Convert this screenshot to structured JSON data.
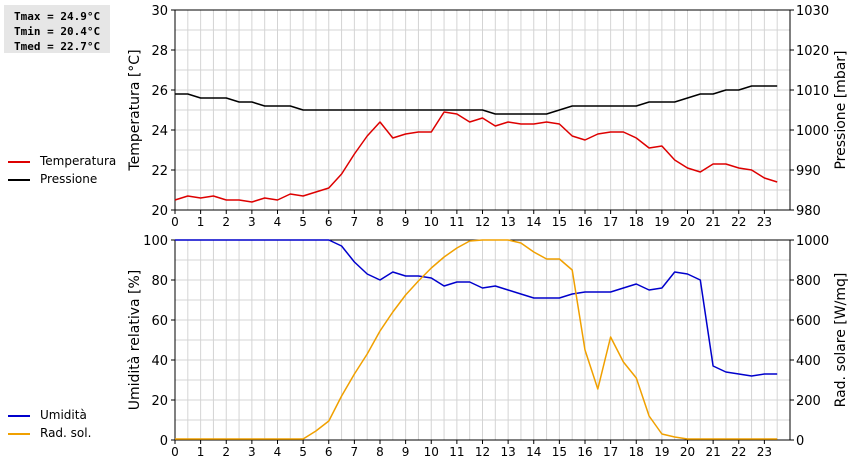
{
  "stats": {
    "tmax": "Tmax = 24.9°C",
    "tmin": "Tmin = 20.4°C",
    "tmed": "Tmed = 22.7°C"
  },
  "colors": {
    "temperature": "#dd0000",
    "pressure": "#000000",
    "humidity": "#0000cc",
    "radiation": "#f0a000",
    "grid": "#d4d4d4"
  },
  "legend_top": [
    {
      "label": "Temperatura",
      "color": "#dd0000"
    },
    {
      "label": "Pressione",
      "color": "#000000"
    }
  ],
  "legend_bottom": [
    {
      "label": "Umidità",
      "color": "#0000cc"
    },
    {
      "label": "Rad. sol.",
      "color": "#f0a000"
    }
  ],
  "chart_data": [
    {
      "type": "line",
      "xlabel": "",
      "xlim": [
        0,
        24
      ],
      "xticks": [
        "0",
        "1",
        "2",
        "3",
        "4",
        "5",
        "6",
        "7",
        "8",
        "9",
        "10",
        "11",
        "12",
        "13",
        "14",
        "15",
        "16",
        "17",
        "18",
        "19",
        "20",
        "21",
        "22",
        "23"
      ],
      "grid": true,
      "left_axis": {
        "label": "Temperatura [°C]",
        "lim": [
          20,
          30
        ],
        "ticks": [
          "20",
          "22",
          "24",
          "26",
          "28",
          "30"
        ]
      },
      "right_axis": {
        "label": "Pressione [mbar]",
        "lim": [
          980,
          1030
        ],
        "ticks": [
          "980",
          "990",
          "1000",
          "1010",
          "1020",
          "1030"
        ]
      },
      "series": [
        {
          "name": "Temperatura",
          "axis": "left",
          "x": [
            0,
            0.5,
            1,
            1.5,
            2,
            2.5,
            3,
            3.5,
            4,
            4.5,
            5,
            5.5,
            6,
            6.5,
            7,
            7.5,
            8,
            8.5,
            9,
            9.5,
            10,
            10.5,
            11,
            11.5,
            12,
            12.5,
            13,
            13.5,
            14,
            14.5,
            15,
            15.5,
            16,
            16.5,
            17,
            17.5,
            18,
            18.5,
            19,
            19.5,
            20,
            20.5,
            21,
            21.5,
            22,
            22.5,
            23,
            23.5
          ],
          "y": [
            20.5,
            20.7,
            20.6,
            20.7,
            20.5,
            20.5,
            20.4,
            20.6,
            20.5,
            20.8,
            20.7,
            20.9,
            21.1,
            21.8,
            22.8,
            23.7,
            24.4,
            23.6,
            23.8,
            23.9,
            23.9,
            24.9,
            24.8,
            24.4,
            24.6,
            24.2,
            24.4,
            24.3,
            24.3,
            24.4,
            24.3,
            23.7,
            23.5,
            23.8,
            23.9,
            23.9,
            23.6,
            23.1,
            23.2,
            22.5,
            22.1,
            21.9,
            22.3,
            22.3,
            22.1,
            22.0,
            21.6,
            21.4
          ]
        },
        {
          "name": "Pressione",
          "axis": "right",
          "x": [
            0,
            0.5,
            1,
            1.5,
            2,
            2.5,
            3,
            3.5,
            4,
            4.5,
            5,
            5.5,
            6,
            6.5,
            7,
            7.5,
            8,
            8.5,
            9,
            9.5,
            10,
            10.5,
            11,
            11.5,
            12,
            12.5,
            13,
            13.5,
            14,
            14.5,
            15,
            15.5,
            16,
            16.5,
            17,
            17.5,
            18,
            18.5,
            19,
            19.5,
            20,
            20.5,
            21,
            21.5,
            22,
            22.5,
            23,
            23.5
          ],
          "y": [
            1009,
            1009,
            1008,
            1008,
            1008,
            1007,
            1007,
            1006,
            1006,
            1006,
            1005,
            1005,
            1005,
            1005,
            1005,
            1005,
            1005,
            1005,
            1005,
            1005,
            1005,
            1005,
            1005,
            1005,
            1005,
            1004,
            1004,
            1004,
            1004,
            1004,
            1005,
            1006,
            1006,
            1006,
            1006,
            1006,
            1006,
            1007,
            1007,
            1007,
            1008,
            1009,
            1009,
            1010,
            1010,
            1011,
            1011,
            1011
          ]
        }
      ]
    },
    {
      "type": "line",
      "xlabel": "",
      "xlim": [
        0,
        24
      ],
      "xticks": [
        "0",
        "1",
        "2",
        "3",
        "4",
        "5",
        "6",
        "7",
        "8",
        "9",
        "10",
        "11",
        "12",
        "13",
        "14",
        "15",
        "16",
        "17",
        "18",
        "19",
        "20",
        "21",
        "22",
        "23"
      ],
      "grid": true,
      "left_axis": {
        "label": "Umidità relativa [%]",
        "lim": [
          0,
          100
        ],
        "ticks": [
          "0",
          "20",
          "40",
          "60",
          "80",
          "100"
        ]
      },
      "right_axis": {
        "label": "Rad. solare [W/mq]",
        "lim": [
          0,
          1000
        ],
        "ticks": [
          "0",
          "200",
          "400",
          "600",
          "800",
          "1000"
        ]
      },
      "series": [
        {
          "name": "Umidità",
          "axis": "left",
          "x": [
            0,
            0.5,
            1,
            1.5,
            2,
            2.5,
            3,
            3.5,
            4,
            4.5,
            5,
            5.5,
            6,
            6.5,
            7,
            7.5,
            8,
            8.5,
            9,
            9.5,
            10,
            10.5,
            11,
            11.5,
            12,
            12.5,
            13,
            13.5,
            14,
            14.5,
            15,
            15.5,
            16,
            16.5,
            17,
            17.5,
            18,
            18.5,
            19,
            19.5,
            20,
            20.5,
            21,
            21.5,
            22,
            22.5,
            23,
            23.5
          ],
          "y": [
            100,
            100,
            100,
            100,
            100,
            100,
            100,
            100,
            100,
            100,
            100,
            100,
            100,
            97,
            89,
            83,
            80,
            84,
            82,
            82,
            81,
            77,
            79,
            79,
            76,
            77,
            75,
            73,
            71,
            71,
            71,
            73,
            74,
            74,
            74,
            76,
            78,
            75,
            76,
            84,
            83,
            80,
            37,
            34,
            33,
            32,
            33,
            33
          ]
        },
        {
          "name": "Rad. sol.",
          "axis": "right",
          "x": [
            0,
            0.5,
            1,
            1.5,
            2,
            2.5,
            3,
            3.5,
            4,
            4.5,
            5,
            5.5,
            6,
            6.5,
            7,
            7.5,
            8,
            8.5,
            9,
            9.5,
            10,
            10.5,
            11,
            11.5,
            12,
            12.5,
            13,
            13.5,
            14,
            14.5,
            15,
            15.5,
            16,
            16.5,
            17,
            17.5,
            18,
            18.5,
            19,
            19.5,
            20,
            20.5,
            21,
            21.5,
            22,
            22.5,
            23,
            23.5
          ],
          "y": [
            5,
            5,
            5,
            5,
            5,
            5,
            5,
            5,
            5,
            5,
            5,
            45,
            95,
            220,
            330,
            430,
            545,
            640,
            725,
            795,
            860,
            915,
            960,
            995,
            1000,
            1000,
            1000,
            985,
            940,
            905,
            905,
            850,
            450,
            255,
            515,
            390,
            310,
            120,
            30,
            15,
            5,
            5,
            5,
            5,
            5,
            5,
            5,
            5
          ]
        }
      ]
    }
  ]
}
